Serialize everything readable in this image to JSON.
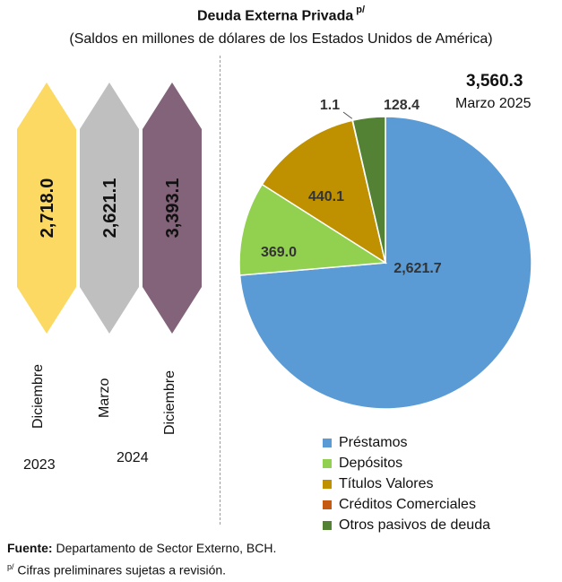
{
  "header": {
    "title": "Deuda Externa Privada",
    "title_sup": "p/",
    "subtitle": "(Saldos en millones de dólares de los Estados Unidos de América)"
  },
  "chart_data": [
    {
      "type": "bar",
      "categories": [
        "Diciembre",
        "Marzo",
        "Diciembre"
      ],
      "values": [
        2718.0,
        2621.1,
        3393.1
      ],
      "value_labels": [
        "2,718.0",
        "2,621.1",
        "3,393.1"
      ],
      "colors": [
        "#fbd963",
        "#bfbfbf",
        "#836379"
      ],
      "year_labels": [
        "2023",
        "2024"
      ]
    },
    {
      "type": "pie",
      "total_label": "3,560.3",
      "date_label": "Marzo 2025",
      "slices": [
        {
          "name": "Préstamos",
          "value": 2621.7,
          "label": "2,621.7",
          "color": "#5b9bd5"
        },
        {
          "name": "Depósitos",
          "value": 369.0,
          "label": "369.0",
          "color": "#92d050"
        },
        {
          "name": "Títulos Valores",
          "value": 440.1,
          "label": "440.1",
          "color": "#bf9000"
        },
        {
          "name": "Créditos Comerciales",
          "value": 1.1,
          "label": "1.1",
          "color": "#c55a11"
        },
        {
          "name": "Otros pasivos de deuda",
          "value": 128.4,
          "label": "128.4",
          "color": "#548235"
        }
      ]
    }
  ],
  "footer": {
    "source_label": "Fuente:",
    "source_text": "Departamento de Sector Externo, BCH.",
    "note_sup": "p/",
    "note_text": "Cifras preliminares sujetas a revisión."
  }
}
